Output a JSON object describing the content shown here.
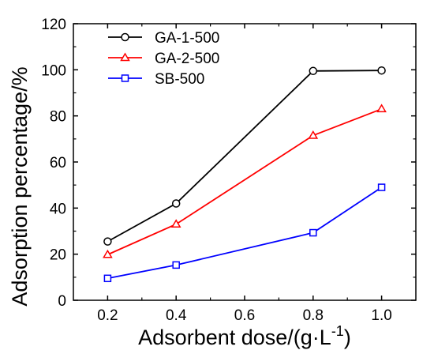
{
  "chart_data": {
    "type": "line",
    "xlabel": "Adsorbent dose/(g·L",
    "xlabel_sup": "-1",
    "xlabel_end": ")",
    "ylabel": "Adsorption percentage/%",
    "xlim": [
      0.1,
      1.1
    ],
    "ylim": [
      0,
      120
    ],
    "xticks": [
      "0.2",
      "0.4",
      "0.6",
      "0.8",
      "1.0"
    ],
    "yticks": [
      "0",
      "20",
      "40",
      "60",
      "80",
      "100",
      "120"
    ],
    "x": [
      0.2,
      0.4,
      0.8,
      1.0
    ],
    "legend_position": "top-left",
    "grid": false,
    "series": [
      {
        "name": "GA-1-500",
        "color": "#000000",
        "marker": "circle",
        "values": [
          25.5,
          42,
          99.5,
          99.7
        ]
      },
      {
        "name": "GA-2-500",
        "color": "#ff0000",
        "marker": "triangle",
        "values": [
          19.8,
          33,
          71.5,
          83
        ]
      },
      {
        "name": "SB-500",
        "color": "#0000ff",
        "marker": "square",
        "values": [
          9.5,
          15.3,
          29.3,
          49
        ]
      }
    ]
  }
}
